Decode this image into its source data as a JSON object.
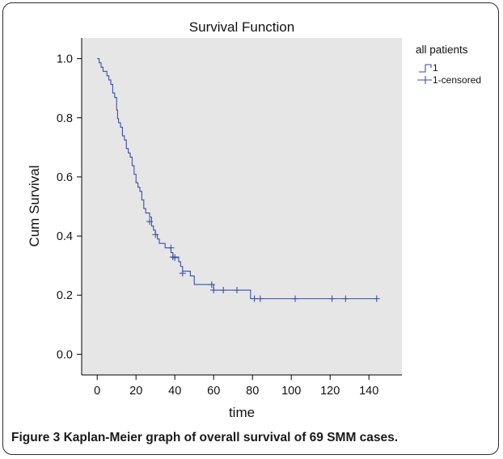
{
  "chart_data": {
    "type": "line",
    "subtype": "kaplan-meier-step",
    "title": "Survival Function",
    "xlabel": "time",
    "ylabel": "Cum Survival",
    "xlim": [
      -8,
      157
    ],
    "ylim": [
      -0.07,
      1.07
    ],
    "xticks": [
      "0",
      "20",
      "40",
      "60",
      "80",
      "100",
      "120",
      "140"
    ],
    "xtick_values": [
      0,
      20,
      40,
      60,
      80,
      100,
      120,
      140
    ],
    "yticks": [
      "0.0",
      "0.2",
      "0.4",
      "0.6",
      "0.8",
      "1.0"
    ],
    "ytick_values": [
      0.0,
      0.2,
      0.4,
      0.6,
      0.8,
      1.0
    ],
    "grid": false,
    "legend_position": "top-right, outside plot",
    "legend_title": "all patients",
    "series": [
      {
        "name": "1",
        "color": "#3a4fa8",
        "steps": [
          [
            0,
            1.0
          ],
          [
            1,
            0.986
          ],
          [
            2,
            0.971
          ],
          [
            3,
            0.957
          ],
          [
            5,
            0.942
          ],
          [
            6,
            0.928
          ],
          [
            7,
            0.913
          ],
          [
            8,
            0.884
          ],
          [
            9,
            0.869
          ],
          [
            10,
            0.826
          ],
          [
            10.5,
            0.797
          ],
          [
            11,
            0.783
          ],
          [
            12,
            0.768
          ],
          [
            13,
            0.739
          ],
          [
            14,
            0.725
          ],
          [
            15,
            0.696
          ],
          [
            16,
            0.681
          ],
          [
            17,
            0.667
          ],
          [
            18,
            0.638
          ],
          [
            19,
            0.609
          ],
          [
            20,
            0.58
          ],
          [
            21,
            0.565
          ],
          [
            22,
            0.551
          ],
          [
            23,
            0.522
          ],
          [
            24,
            0.493
          ],
          [
            25,
            0.478
          ],
          [
            27,
            0.464
          ],
          [
            28,
            0.434
          ],
          [
            29,
            0.42
          ],
          [
            30,
            0.405
          ],
          [
            31,
            0.39
          ],
          [
            32,
            0.375
          ],
          [
            35,
            0.36
          ],
          [
            38,
            0.344
          ],
          [
            39,
            0.329
          ],
          [
            42,
            0.313
          ],
          [
            43,
            0.297
          ],
          [
            44,
            0.281
          ],
          [
            48,
            0.265
          ],
          [
            50,
            0.236
          ],
          [
            60,
            0.217
          ],
          [
            79,
            0.188
          ]
        ],
        "end_x": 144
      },
      {
        "name": "1-censored",
        "color": "#3a4fa8",
        "points": [
          [
            27,
            0.449
          ],
          [
            30,
            0.405
          ],
          [
            38,
            0.36
          ],
          [
            39,
            0.329
          ],
          [
            40,
            0.327
          ],
          [
            44,
            0.274
          ],
          [
            59,
            0.236
          ],
          [
            60,
            0.217
          ],
          [
            65,
            0.217
          ],
          [
            72,
            0.217
          ],
          [
            81,
            0.188
          ],
          [
            84,
            0.188
          ],
          [
            102,
            0.188
          ],
          [
            121,
            0.188
          ],
          [
            128,
            0.188
          ],
          [
            144,
            0.188
          ]
        ]
      }
    ]
  },
  "colors": {
    "plot_background": "#e6e6e6",
    "line": "#3a4fa8",
    "axis": "#000000"
  },
  "caption": {
    "figure_label": "Figure 3",
    "text": "Kaplan-Meier graph of overall survival of 69 SMM cases."
  }
}
